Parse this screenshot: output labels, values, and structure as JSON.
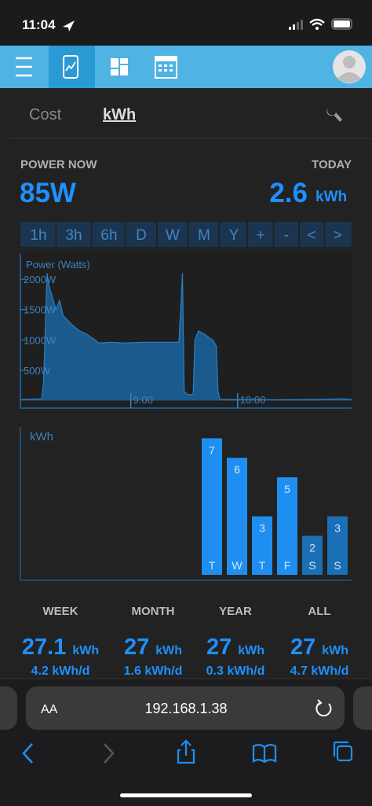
{
  "status_bar": {
    "time": "11:04"
  },
  "tabs": [
    "Cost",
    "kWh"
  ],
  "power_now": {
    "label": "POWER NOW",
    "value": "85W"
  },
  "today": {
    "label": "TODAY",
    "value": "2.6",
    "unit": "kWh"
  },
  "range_buttons": [
    "1h",
    "3h",
    "6h",
    "D",
    "W",
    "M",
    "Y",
    "+",
    "-",
    "<",
    ">"
  ],
  "chart_data": [
    {
      "type": "area",
      "title": "Power (Watts)",
      "color": "#1b5a8c",
      "line_color": "#2a7fc4",
      "x": [
        478,
        490,
        491,
        493,
        494,
        496,
        498,
        500,
        502,
        507,
        511,
        515,
        520,
        522,
        529,
        537,
        546,
        555,
        567,
        568,
        569,
        570,
        572,
        575,
        576,
        578,
        581,
        586,
        588,
        589,
        590,
        599,
        621,
        643,
        660,
        664
      ],
      "values": [
        20,
        30,
        300,
        2100,
        1900,
        1700,
        1500,
        1650,
        1400,
        1250,
        1150,
        1100,
        1000,
        950,
        960,
        950,
        960,
        960,
        960,
        1500,
        2100,
        150,
        100,
        100,
        1000,
        1150,
        1100,
        1000,
        900,
        150,
        20,
        20,
        15,
        20,
        30,
        20
      ],
      "xlim": [
        478,
        664
      ],
      "ylim": [
        -110,
        2390
      ],
      "xticks": [
        {
          "value": 540,
          "label": "9:00"
        },
        {
          "value": 600,
          "label": "10:00"
        }
      ],
      "yticks": [
        {
          "value": 500,
          "label": "500W"
        },
        {
          "value": 1000,
          "label": "1000W"
        },
        {
          "value": 1500,
          "label": "1500W"
        },
        {
          "value": 2000,
          "label": "2000W"
        }
      ]
    },
    {
      "type": "bar",
      "title": "kWh",
      "categories": [
        "T",
        "W",
        "T",
        "F",
        "S",
        "S"
      ],
      "values": [
        7,
        6,
        3,
        5,
        2,
        3
      ],
      "colors": [
        "#1e8ff0",
        "#1e8ff0",
        "#1e8ff0",
        "#1e8ff0",
        "#1a6fb5",
        "#1a6fb5"
      ],
      "ylim": [
        0,
        7.5
      ]
    }
  ],
  "summary": [
    {
      "label": "WEEK",
      "value": "27.1",
      "unit": "kWh",
      "rate": "4.2 kWh/d"
    },
    {
      "label": "MONTH",
      "value": "27",
      "unit": "kWh",
      "rate": "1.6 kWh/d"
    },
    {
      "label": "YEAR",
      "value": "27",
      "unit": "kWh",
      "rate": "0.3 kWh/d"
    },
    {
      "label": "ALL",
      "value": "27",
      "unit": "kWh",
      "rate": "4.7 kWh/d"
    }
  ],
  "browser": {
    "text_size": "AA",
    "url": "192.168.1.38"
  }
}
